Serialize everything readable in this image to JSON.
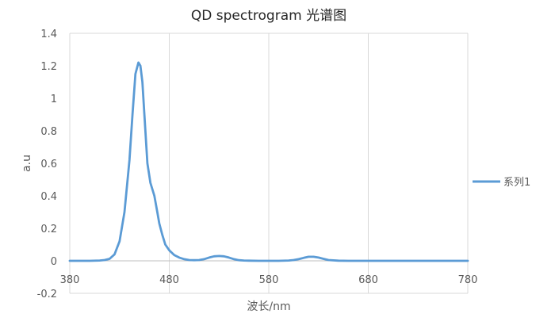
{
  "chart_data": {
    "type": "line",
    "title": "QD spectrogram 光谱图",
    "xlabel": "波长/nm",
    "ylabel": "a.u",
    "xlim": [
      380,
      780
    ],
    "ylim": [
      -0.2,
      1.4
    ],
    "x_ticks": [
      380,
      480,
      580,
      680,
      780
    ],
    "y_ticks": [
      "1.4",
      "1.2",
      "1",
      "0.8",
      "0.6",
      "0.4",
      "0.2",
      "0",
      "-0.2"
    ],
    "grid": true,
    "legend_position": "right",
    "series": [
      {
        "name": "系列1",
        "color": "#5B9BD5",
        "x": [
          380,
          400,
          410,
          415,
          420,
          425,
          430,
          435,
          440,
          443,
          446,
          449,
          451,
          453,
          455,
          458,
          461,
          465,
          468,
          470,
          473,
          476,
          480,
          485,
          490,
          495,
          500,
          505,
          510,
          515,
          520,
          525,
          530,
          535,
          540,
          545,
          550,
          555,
          560,
          570,
          580,
          590,
          600,
          605,
          610,
          615,
          620,
          625,
          630,
          635,
          640,
          650,
          660,
          670,
          680,
          700,
          720,
          740,
          760,
          780
        ],
        "y": [
          0,
          0,
          0.002,
          0.005,
          0.012,
          0.04,
          0.12,
          0.3,
          0.62,
          0.9,
          1.15,
          1.22,
          1.2,
          1.1,
          0.9,
          0.6,
          0.48,
          0.4,
          0.3,
          0.23,
          0.16,
          0.1,
          0.065,
          0.035,
          0.02,
          0.01,
          0.005,
          0.004,
          0.005,
          0.01,
          0.02,
          0.028,
          0.03,
          0.028,
          0.02,
          0.01,
          0.004,
          0.002,
          0.001,
          0,
          0,
          0,
          0.002,
          0.005,
          0.01,
          0.018,
          0.025,
          0.025,
          0.02,
          0.012,
          0.005,
          0.001,
          0,
          0,
          0,
          0,
          0,
          0,
          0,
          0
        ]
      }
    ]
  }
}
